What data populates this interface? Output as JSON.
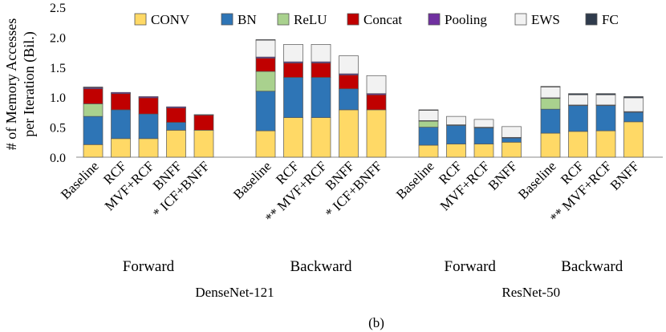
{
  "chart_data": {
    "type": "stacked-bar",
    "ylabel_line1": "# of Memory Accesses",
    "ylabel_line2": "per Iteration (Bil.)",
    "ylim": [
      0,
      2.5
    ],
    "yticks": [
      "0.0",
      "0.5",
      "1.0",
      "1.5",
      "2.0",
      "2.5"
    ],
    "grid": false,
    "legend_position": "top",
    "caption": "(b)",
    "components": [
      {
        "name": "CONV",
        "color": "#FFD966"
      },
      {
        "name": "BN",
        "color": "#2E75B6"
      },
      {
        "name": "ReLU",
        "color": "#A9D18E"
      },
      {
        "name": "Concat",
        "color": "#C00000"
      },
      {
        "name": "Pooling",
        "color": "#7030A0"
      },
      {
        "name": "EWS",
        "color": "#F2F2F2"
      },
      {
        "name": "FC",
        "color": "#2F3B4C"
      }
    ],
    "groups": [
      {
        "network": "DenseNet-121",
        "direction": "Forward",
        "bars": [
          {
            "label": "Baseline",
            "values": [
              0.21,
              0.47,
              0.21,
              0.25,
              0.02,
              0.0,
              0.01
            ]
          },
          {
            "label": "RCF",
            "values": [
              0.31,
              0.48,
              0.0,
              0.27,
              0.02,
              0.0,
              0.0
            ]
          },
          {
            "label": "MVF+RCF",
            "values": [
              0.31,
              0.41,
              0.0,
              0.27,
              0.02,
              0.0,
              0.0
            ]
          },
          {
            "label": "BNFF",
            "values": [
              0.45,
              0.13,
              0.0,
              0.24,
              0.02,
              0.0,
              0.0
            ]
          },
          {
            "label": "* ICF+BNFF",
            "values": [
              0.45,
              0.0,
              0.0,
              0.25,
              0.01,
              0.0,
              0.0
            ]
          }
        ]
      },
      {
        "network": "DenseNet-121",
        "direction": "Backward",
        "bars": [
          {
            "label": "Baseline",
            "values": [
              0.44,
              0.66,
              0.33,
              0.22,
              0.02,
              0.28,
              0.01
            ]
          },
          {
            "label": "RCF",
            "values": [
              0.66,
              0.67,
              0.0,
              0.24,
              0.02,
              0.29,
              0.0
            ]
          },
          {
            "label": "** MVF+RCF",
            "values": [
              0.66,
              0.67,
              0.0,
              0.24,
              0.02,
              0.29,
              0.0
            ]
          },
          {
            "label": "BNFF",
            "values": [
              0.79,
              0.35,
              0.0,
              0.23,
              0.02,
              0.3,
              0.0
            ]
          },
          {
            "label": "* ICF+BNFF",
            "values": [
              0.79,
              0.0,
              0.0,
              0.25,
              0.02,
              0.3,
              0.0
            ]
          }
        ]
      },
      {
        "network": "ResNet-50",
        "direction": "Forward",
        "bars": [
          {
            "label": "Baseline",
            "values": [
              0.2,
              0.3,
              0.1,
              0.0,
              0.01,
              0.17,
              0.01
            ]
          },
          {
            "label": "RCF",
            "values": [
              0.22,
              0.31,
              0.0,
              0.0,
              0.01,
              0.14,
              0.0
            ]
          },
          {
            "label": "MVF+RCF",
            "values": [
              0.22,
              0.27,
              0.0,
              0.0,
              0.01,
              0.13,
              0.0
            ]
          },
          {
            "label": "BNFF",
            "values": [
              0.25,
              0.07,
              0.0,
              0.0,
              0.01,
              0.18,
              0.0
            ]
          }
        ]
      },
      {
        "network": "ResNet-50",
        "direction": "Backward",
        "bars": [
          {
            "label": "Baseline",
            "values": [
              0.4,
              0.4,
              0.18,
              0.0,
              0.01,
              0.18,
              0.01
            ]
          },
          {
            "label": "RCF",
            "values": [
              0.43,
              0.43,
              0.0,
              0.0,
              0.01,
              0.17,
              0.02
            ]
          },
          {
            "label": "** MVF+RCF",
            "values": [
              0.44,
              0.42,
              0.0,
              0.0,
              0.01,
              0.17,
              0.02
            ]
          },
          {
            "label": "BNFF",
            "values": [
              0.59,
              0.16,
              0.0,
              0.0,
              0.01,
              0.23,
              0.02
            ]
          }
        ]
      }
    ]
  }
}
